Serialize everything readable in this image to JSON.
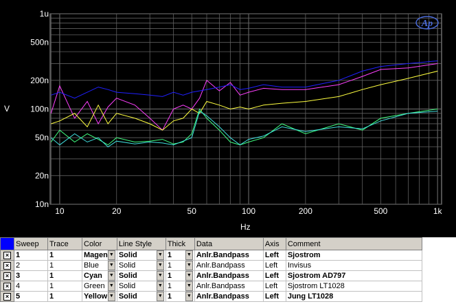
{
  "chart_data": {
    "type": "line",
    "title": "",
    "xlabel": "Hz",
    "ylabel": "V",
    "xscale": "log",
    "yscale": "log",
    "xlim": [
      8.9,
      1050
    ],
    "ylim": [
      1e-08,
      1e-06
    ],
    "background": "#000000",
    "grid": true,
    "grid_color": "#606060",
    "x_ticks": [
      {
        "value": 10,
        "label": "10"
      },
      {
        "value": 20,
        "label": "20"
      },
      {
        "value": 50,
        "label": "50"
      },
      {
        "value": 100,
        "label": "100"
      },
      {
        "value": 200,
        "label": "200"
      },
      {
        "value": 500,
        "label": "500"
      },
      {
        "value": 1000,
        "label": "1k"
      }
    ],
    "y_ticks": [
      {
        "value": 1e-08,
        "label": "10n"
      },
      {
        "value": 2e-08,
        "label": "20n"
      },
      {
        "value": 5e-08,
        "label": "50n"
      },
      {
        "value": 1e-07,
        "label": "100n"
      },
      {
        "value": 2e-07,
        "label": "200n"
      },
      {
        "value": 5e-07,
        "label": "500n"
      },
      {
        "value": 1e-06,
        "label": "1u"
      }
    ],
    "series": [
      {
        "color": "#ff40ff",
        "x": [
          9,
          10,
          12,
          14,
          16,
          18,
          20,
          25,
          30,
          35,
          40,
          45,
          50,
          55,
          60,
          70,
          80,
          90,
          100,
          120,
          150,
          200,
          300,
          400,
          500,
          700,
          1000
        ],
        "y": [
          9e-08,
          1.75e-07,
          8e-08,
          1.2e-07,
          7e-08,
          1.05e-07,
          1.3e-07,
          1.1e-07,
          8e-08,
          6e-08,
          1e-07,
          1.1e-07,
          1e-07,
          1.3e-07,
          2e-07,
          1.55e-07,
          1.9e-07,
          1.4e-07,
          1.5e-07,
          1.65e-07,
          1.6e-07,
          1.6e-07,
          1.8e-07,
          2.2e-07,
          2.6e-07,
          2.7e-07,
          3e-07
        ]
      },
      {
        "color": "#2020ff",
        "x": [
          9,
          10,
          12,
          14,
          16,
          18,
          20,
          25,
          30,
          35,
          40,
          45,
          50,
          55,
          60,
          70,
          80,
          90,
          100,
          120,
          150,
          200,
          300,
          400,
          500,
          700,
          1000
        ],
        "y": [
          1.4e-07,
          1.5e-07,
          1.3e-07,
          1.5e-07,
          1.7e-07,
          1.6e-07,
          1.5e-07,
          1.45e-07,
          1.4e-07,
          1.35e-07,
          1.5e-07,
          1.4e-07,
          1.5e-07,
          1.55e-07,
          1.6e-07,
          1.7e-07,
          1.8e-07,
          1.6e-07,
          1.65e-07,
          1.8e-07,
          1.7e-07,
          1.7e-07,
          2e-07,
          2.5e-07,
          2.8e-07,
          3e-07,
          3.2e-07
        ]
      },
      {
        "color": "#ffff40",
        "x": [
          9,
          10,
          12,
          14,
          16,
          18,
          20,
          25,
          30,
          35,
          40,
          45,
          50,
          55,
          60,
          70,
          80,
          90,
          100,
          120,
          150,
          200,
          300,
          400,
          500,
          700,
          1000
        ],
        "y": [
          7e-08,
          7.5e-08,
          9e-08,
          6.5e-08,
          1.1e-07,
          7e-08,
          9e-08,
          8e-08,
          7e-08,
          6e-08,
          7.5e-08,
          8e-08,
          1e-07,
          9e-08,
          1.2e-07,
          1.1e-07,
          1e-07,
          1.05e-07,
          1e-07,
          1.1e-07,
          1.15e-07,
          1.2e-07,
          1.35e-07,
          1.6e-07,
          1.8e-07,
          2.1e-07,
          2.5e-07
        ]
      },
      {
        "color": "#40ff80",
        "x": [
          9,
          10,
          12,
          14,
          16,
          18,
          20,
          25,
          30,
          35,
          40,
          45,
          50,
          55,
          60,
          70,
          80,
          90,
          100,
          120,
          150,
          200,
          300,
          400,
          500,
          700,
          1000
        ],
        "y": [
          4.5e-08,
          6e-08,
          4.5e-08,
          5.5e-08,
          4.8e-08,
          4.2e-08,
          5e-08,
          4.5e-08,
          4.6e-08,
          4.8e-08,
          4.3e-08,
          4.5e-08,
          5.5e-08,
          1e-07,
          8e-08,
          6e-08,
          4.5e-08,
          4.2e-08,
          4.5e-08,
          5e-08,
          7e-08,
          5.5e-08,
          7e-08,
          6e-08,
          8e-08,
          9e-08,
          1e-07
        ]
      },
      {
        "color": "#40e0e0",
        "x": [
          9,
          10,
          12,
          14,
          16,
          18,
          20,
          25,
          30,
          35,
          40,
          45,
          50,
          55,
          60,
          70,
          80,
          90,
          100,
          120,
          150,
          200,
          300,
          400,
          500,
          700,
          1000
        ],
        "y": [
          5e-08,
          4.2e-08,
          5.5e-08,
          4.5e-08,
          5e-08,
          4e-08,
          4.6e-08,
          4.3e-08,
          4.5e-08,
          4.4e-08,
          4.2e-08,
          4.6e-08,
          5e-08,
          9.5e-08,
          8.5e-08,
          6.5e-08,
          5e-08,
          4.2e-08,
          4.8e-08,
          5.2e-08,
          6.5e-08,
          5.8e-08,
          6.5e-08,
          6.2e-08,
          7.5e-08,
          9e-08,
          9.5e-08
        ]
      }
    ]
  },
  "logo": {
    "text": "Ap"
  },
  "table": {
    "headers": [
      "Sweep",
      "Trace",
      "Color",
      "Line Style",
      "Thick",
      "Data",
      "Axis",
      "Comment"
    ],
    "rows": [
      {
        "sweep": "1",
        "trace": "1",
        "color": "Magen",
        "line_style": "Solid",
        "thick": "1",
        "data": "Anlr.Bandpass",
        "axis": "Left",
        "comment": "Sjostrom",
        "checked": "×",
        "bold": true
      },
      {
        "sweep": "2",
        "trace": "1",
        "color": "Blue",
        "line_style": "Solid",
        "thick": "1",
        "data": "Anlr.Bandpass",
        "axis": "Left",
        "comment": "Invisus",
        "checked": "×",
        "bold": false
      },
      {
        "sweep": "3",
        "trace": "1",
        "color": "Cyan",
        "line_style": "Solid",
        "thick": "1",
        "data": "Anlr.Bandpass",
        "axis": "Left",
        "comment": "Sjostrom AD797",
        "checked": "×",
        "bold": true
      },
      {
        "sweep": "4",
        "trace": "1",
        "color": "Green",
        "line_style": "Solid",
        "thick": "1",
        "data": "Anlr.Bandpass",
        "axis": "Left",
        "comment": "Sjostrom LT1028",
        "checked": "×",
        "bold": false
      },
      {
        "sweep": "5",
        "trace": "1",
        "color": "Yellow",
        "line_style": "Solid",
        "thick": "1",
        "data": "Anlr.Bandpass",
        "axis": "Left",
        "comment": "Jung LT1028",
        "checked": "×",
        "bold": true
      }
    ]
  }
}
